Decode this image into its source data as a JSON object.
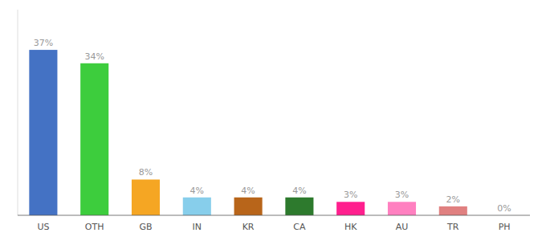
{
  "chart_data": {
    "type": "bar",
    "categories": [
      "US",
      "OTH",
      "GB",
      "IN",
      "KR",
      "CA",
      "HK",
      "AU",
      "TR",
      "PH"
    ],
    "values": [
      37,
      34,
      8,
      4,
      4,
      4,
      3,
      3,
      2,
      0
    ],
    "value_labels": [
      "37%",
      "34%",
      "8%",
      "4%",
      "4%",
      "4%",
      "3%",
      "3%",
      "2%",
      "0%"
    ],
    "colors": [
      "#4472c4",
      "#3dcd3d",
      "#f5a623",
      "#87ceeb",
      "#b8651a",
      "#2d7a2d",
      "#ff1f8e",
      "#ff80c0",
      "#e08080",
      "#f4a0a0"
    ],
    "ylim": [
      0,
      46
    ],
    "data_labels": true,
    "tick_labels": "x",
    "grid": false
  }
}
